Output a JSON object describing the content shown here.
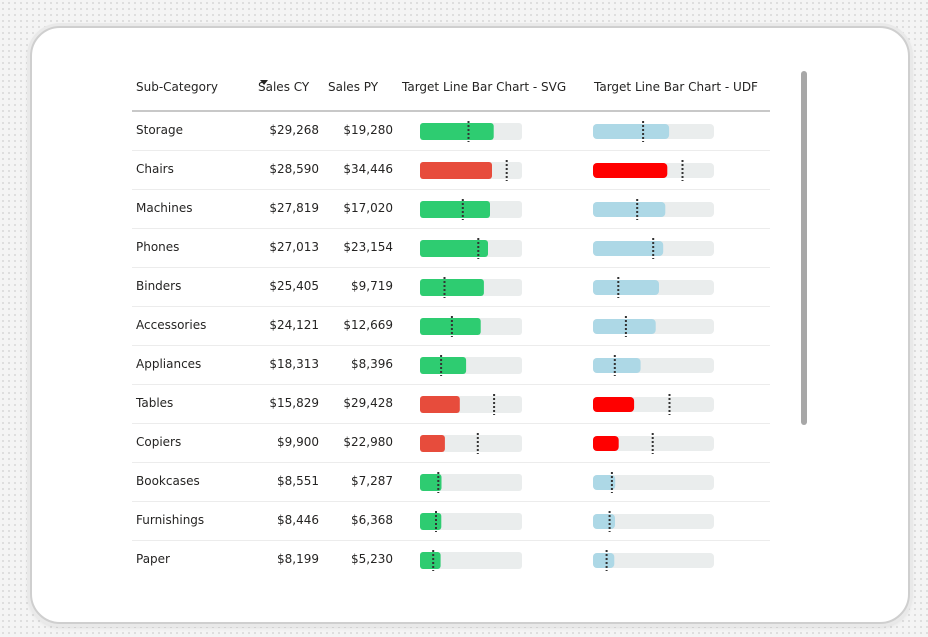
{
  "table": {
    "headers": {
      "sub_category": "Sub-Category",
      "sales_cy": "Sales CY",
      "sales_py": "Sales PY",
      "svg_chart": "Target Line Bar Chart - SVG",
      "udf_chart": "Target Line Bar Chart - UDF"
    },
    "sort": {
      "column": "Sales CY",
      "direction": "descending"
    },
    "rows": [
      {
        "name": "Storage",
        "cy_label": "$29,268",
        "py_label": "$19,280",
        "cy": 29268,
        "py": 19280
      },
      {
        "name": "Chairs",
        "cy_label": "$28,590",
        "py_label": "$34,446",
        "cy": 28590,
        "py": 34446
      },
      {
        "name": "Machines",
        "cy_label": "$27,819",
        "py_label": "$17,020",
        "cy": 27819,
        "py": 17020
      },
      {
        "name": "Phones",
        "cy_label": "$27,013",
        "py_label": "$23,154",
        "cy": 27013,
        "py": 23154
      },
      {
        "name": "Binders",
        "cy_label": "$25,405",
        "py_label": "$9,719",
        "cy": 25405,
        "py": 9719
      },
      {
        "name": "Accessories",
        "cy_label": "$24,121",
        "py_label": "$12,669",
        "cy": 24121,
        "py": 12669
      },
      {
        "name": "Appliances",
        "cy_label": "$18,313",
        "py_label": "$8,396",
        "cy": 18313,
        "py": 8396
      },
      {
        "name": "Tables",
        "cy_label": "$15,829",
        "py_label": "$29,428",
        "cy": 15829,
        "py": 29428
      },
      {
        "name": "Copiers",
        "cy_label": "$9,900",
        "py_label": "$22,980",
        "cy": 9900,
        "py": 22980
      },
      {
        "name": "Bookcases",
        "cy_label": "$8,551",
        "py_label": "$7,287",
        "cy": 8551,
        "py": 7287
      },
      {
        "name": "Furnishings",
        "cy_label": "$8,446",
        "py_label": "$6,368",
        "cy": 8446,
        "py": 6368
      },
      {
        "name": "Paper",
        "cy_label": "$8,199",
        "py_label": "$5,230",
        "cy": 8199,
        "py": 5230
      }
    ]
  },
  "colors": {
    "svg_good": "#2ecc71",
    "svg_bad": "#e74c3c",
    "udf_good": "#add8e6",
    "udf_bad": "#ff0000",
    "track": "#eaeded",
    "target_line": "#333333"
  }
}
